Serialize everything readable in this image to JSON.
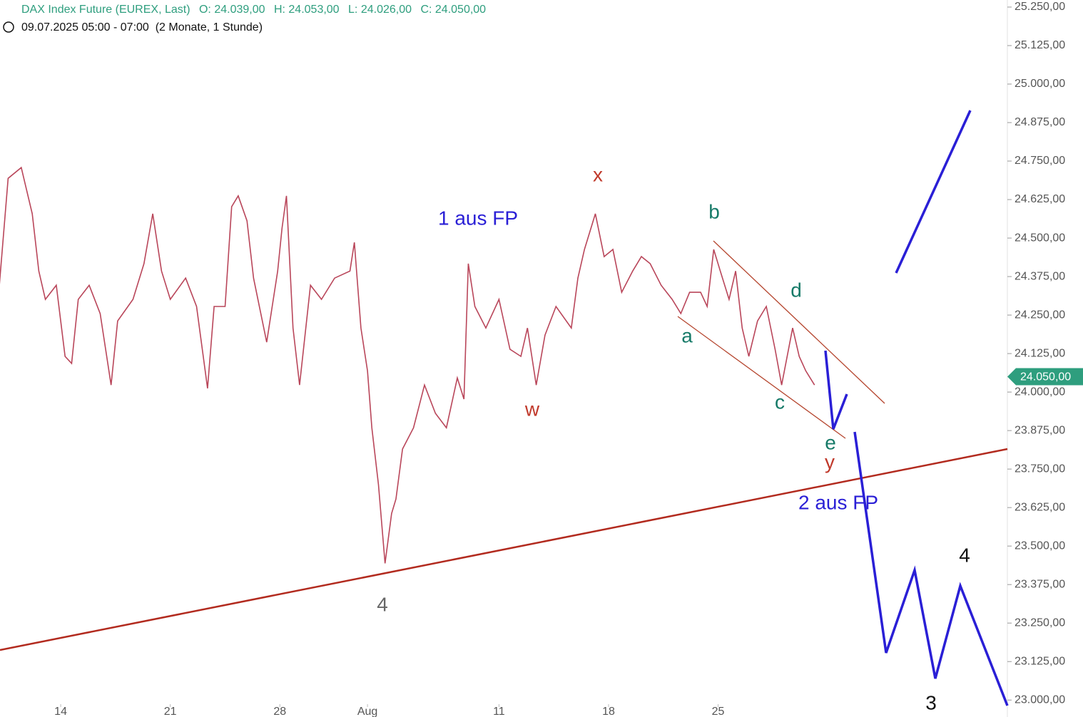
{
  "chart_data": {
    "type": "line",
    "title": "DAX Index Future (EUREX, Last)",
    "ohlc": [
      "O: 24.039,00",
      "H: 24.053,00",
      "L: 24.026,00",
      "C: 24.050,00"
    ],
    "subtitle": "09.07.2025 05:00 - 07:00  (2 Monate, 1 Stunde)",
    "series": [
      {
        "name": "DAX Index Future",
        "color": "#b9465a",
        "x": [
          -2.8,
          -2.4,
          -1.8,
          -1.3,
          -1.0,
          -0.7,
          -0.2,
          0.2,
          0.5,
          0.8,
          1.3,
          1.8,
          2.3,
          2.6,
          3.3,
          3.8,
          4.2,
          4.6,
          5.0,
          5.7,
          6.2,
          6.7,
          7.0,
          7.5,
          7.8,
          8.1,
          8.5,
          8.8,
          9.4,
          9.9,
          10.1,
          10.3,
          10.6,
          10.9,
          11.4,
          11.9,
          12.5,
          13.2,
          13.4,
          13.7,
          14.0,
          14.2,
          14.5,
          14.8,
          15.1,
          15.3,
          15.6,
          16.1,
          16.6,
          17.1,
          17.6,
          18.1,
          18.4,
          18.6,
          18.9,
          19.4,
          20.0,
          20.5,
          21.0,
          21.3,
          21.7,
          22.1,
          22.6,
          23.3,
          23.6,
          23.9,
          24.4,
          24.8,
          25.2,
          25.6,
          26.1,
          26.5,
          26.9,
          27.4,
          27.9,
          28.3,
          28.7,
          29.2,
          29.5,
          29.8,
          30.1,
          30.5,
          30.8,
          31.1,
          31.4,
          31.8,
          32.2,
          32.6,
          32.9,
          33.4,
          33.7,
          34.0,
          34.4
        ],
        "values": [
          24347,
          24694,
          24729,
          24579,
          24393,
          24301,
          24347,
          24116,
          24093,
          24301,
          24347,
          24255,
          24023,
          24231,
          24301,
          24417,
          24579,
          24393,
          24301,
          24370,
          24278,
          24012,
          24278,
          24278,
          24602,
          24637,
          24556,
          24370,
          24162,
          24393,
          24532,
          24637,
          24208,
          24023,
          24347,
          24301,
          24370,
          24393,
          24486,
          24208,
          24069,
          23884,
          23699,
          23444,
          23606,
          23653,
          23815,
          23884,
          24023,
          23931,
          23884,
          24046,
          23977,
          24417,
          24278,
          24208,
          24301,
          24139,
          24116,
          24208,
          24023,
          24185,
          24278,
          24208,
          24370,
          24463,
          24579,
          24440,
          24463,
          24324,
          24393,
          24440,
          24417,
          24347,
          24301,
          24255,
          24324,
          24324,
          24278,
          24463,
          24393,
          24301,
          24393,
          24208,
          24116,
          24231,
          24278,
          24139,
          24023,
          24208,
          24116,
          24069,
          24023
        ]
      }
    ],
    "last_price": {
      "value": 24050,
      "label": "24.050,00"
    },
    "last_price_color": "#2e9e7e",
    "xlim": [
      -2.77,
      43.2
    ],
    "xticks": [
      {
        "value": 0,
        "label": "14"
      },
      {
        "value": 5,
        "label": "21"
      },
      {
        "value": 10,
        "label": "28"
      },
      {
        "value": 14,
        "label": "Aug"
      },
      {
        "value": 20,
        "label": "11"
      },
      {
        "value": 25,
        "label": "18"
      },
      {
        "value": 30,
        "label": "25"
      }
    ],
    "ylim": [
      22945,
      25273
    ],
    "yticks": [
      {
        "value": 25250,
        "label": "25.250,00"
      },
      {
        "value": 25125,
        "label": "25.125,00"
      },
      {
        "value": 25000,
        "label": "25.000,00"
      },
      {
        "value": 24875,
        "label": "24.875,00"
      },
      {
        "value": 24750,
        "label": "24.750,00"
      },
      {
        "value": 24625,
        "label": "24.625,00"
      },
      {
        "value": 24500,
        "label": "24.500,00"
      },
      {
        "value": 24375,
        "label": "24.375,00"
      },
      {
        "value": 24250,
        "label": "24.250,00"
      },
      {
        "value": 24125,
        "label": "24.125,00"
      },
      {
        "value": 24000,
        "label": "24.000,00"
      },
      {
        "value": 23875,
        "label": "23.875,00"
      },
      {
        "value": 23750,
        "label": "23.750,00"
      },
      {
        "value": 23625,
        "label": "23.625,00"
      },
      {
        "value": 23500,
        "label": "23.500,00"
      },
      {
        "value": 23375,
        "label": "23.375,00"
      },
      {
        "value": 23250,
        "label": "23.250,00"
      },
      {
        "value": 23125,
        "label": "23.125,00"
      },
      {
        "value": 23000,
        "label": "23.000,00"
      }
    ],
    "annotations": [
      "x",
      "w",
      "1 aus FP",
      "b",
      "d",
      "a",
      "c",
      "e",
      "y",
      "2 aus FP",
      "4",
      "3",
      "4"
    ]
  }
}
